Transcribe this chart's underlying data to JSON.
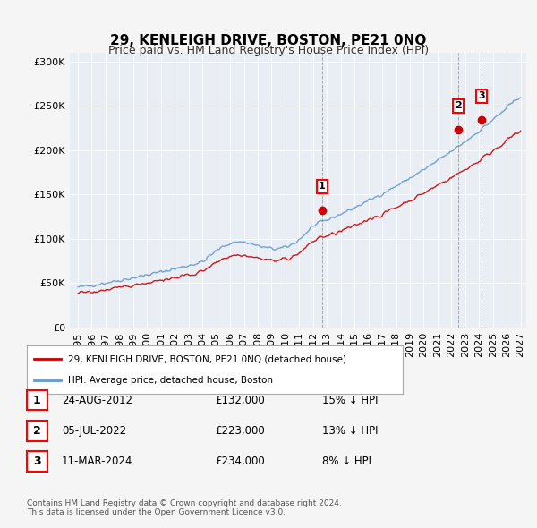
{
  "title": "29, KENLEIGH DRIVE, BOSTON, PE21 0NQ",
  "subtitle": "Price paid vs. HM Land Registry's House Price Index (HPI)",
  "legend_line1": "29, KENLEIGH DRIVE, BOSTON, PE21 0NQ (detached house)",
  "legend_line2": "HPI: Average price, detached house, Boston",
  "transaction_color": "#cc0000",
  "hpi_color": "#6699cc",
  "transactions": [
    {
      "date": "2012-08-24",
      "price": 132000,
      "label": "1",
      "pct": "15% ↓ HPI"
    },
    {
      "date": "2022-07-05",
      "price": 223000,
      "label": "2",
      "pct": "13% ↓ HPI"
    },
    {
      "date": "2024-03-11",
      "price": 234000,
      "label": "3",
      "pct": "8% ↓ HPI"
    }
  ],
  "table_rows": [
    {
      "num": "1",
      "date": "24-AUG-2012",
      "price": "£132,000",
      "pct": "15% ↓ HPI"
    },
    {
      "num": "2",
      "date": "05-JUL-2022",
      "price": "£223,000",
      "pct": "13% ↓ HPI"
    },
    {
      "num": "3",
      "date": "11-MAR-2024",
      "price": "£234,000",
      "pct": "8% ↓ HPI"
    }
  ],
  "footnote": "Contains HM Land Registry data © Crown copyright and database right 2024.\nThis data is licensed under the Open Government Licence v3.0.",
  "ylim": [
    0,
    310000
  ],
  "background_color": "#f0f4f8",
  "plot_bg": "#e8eef4"
}
